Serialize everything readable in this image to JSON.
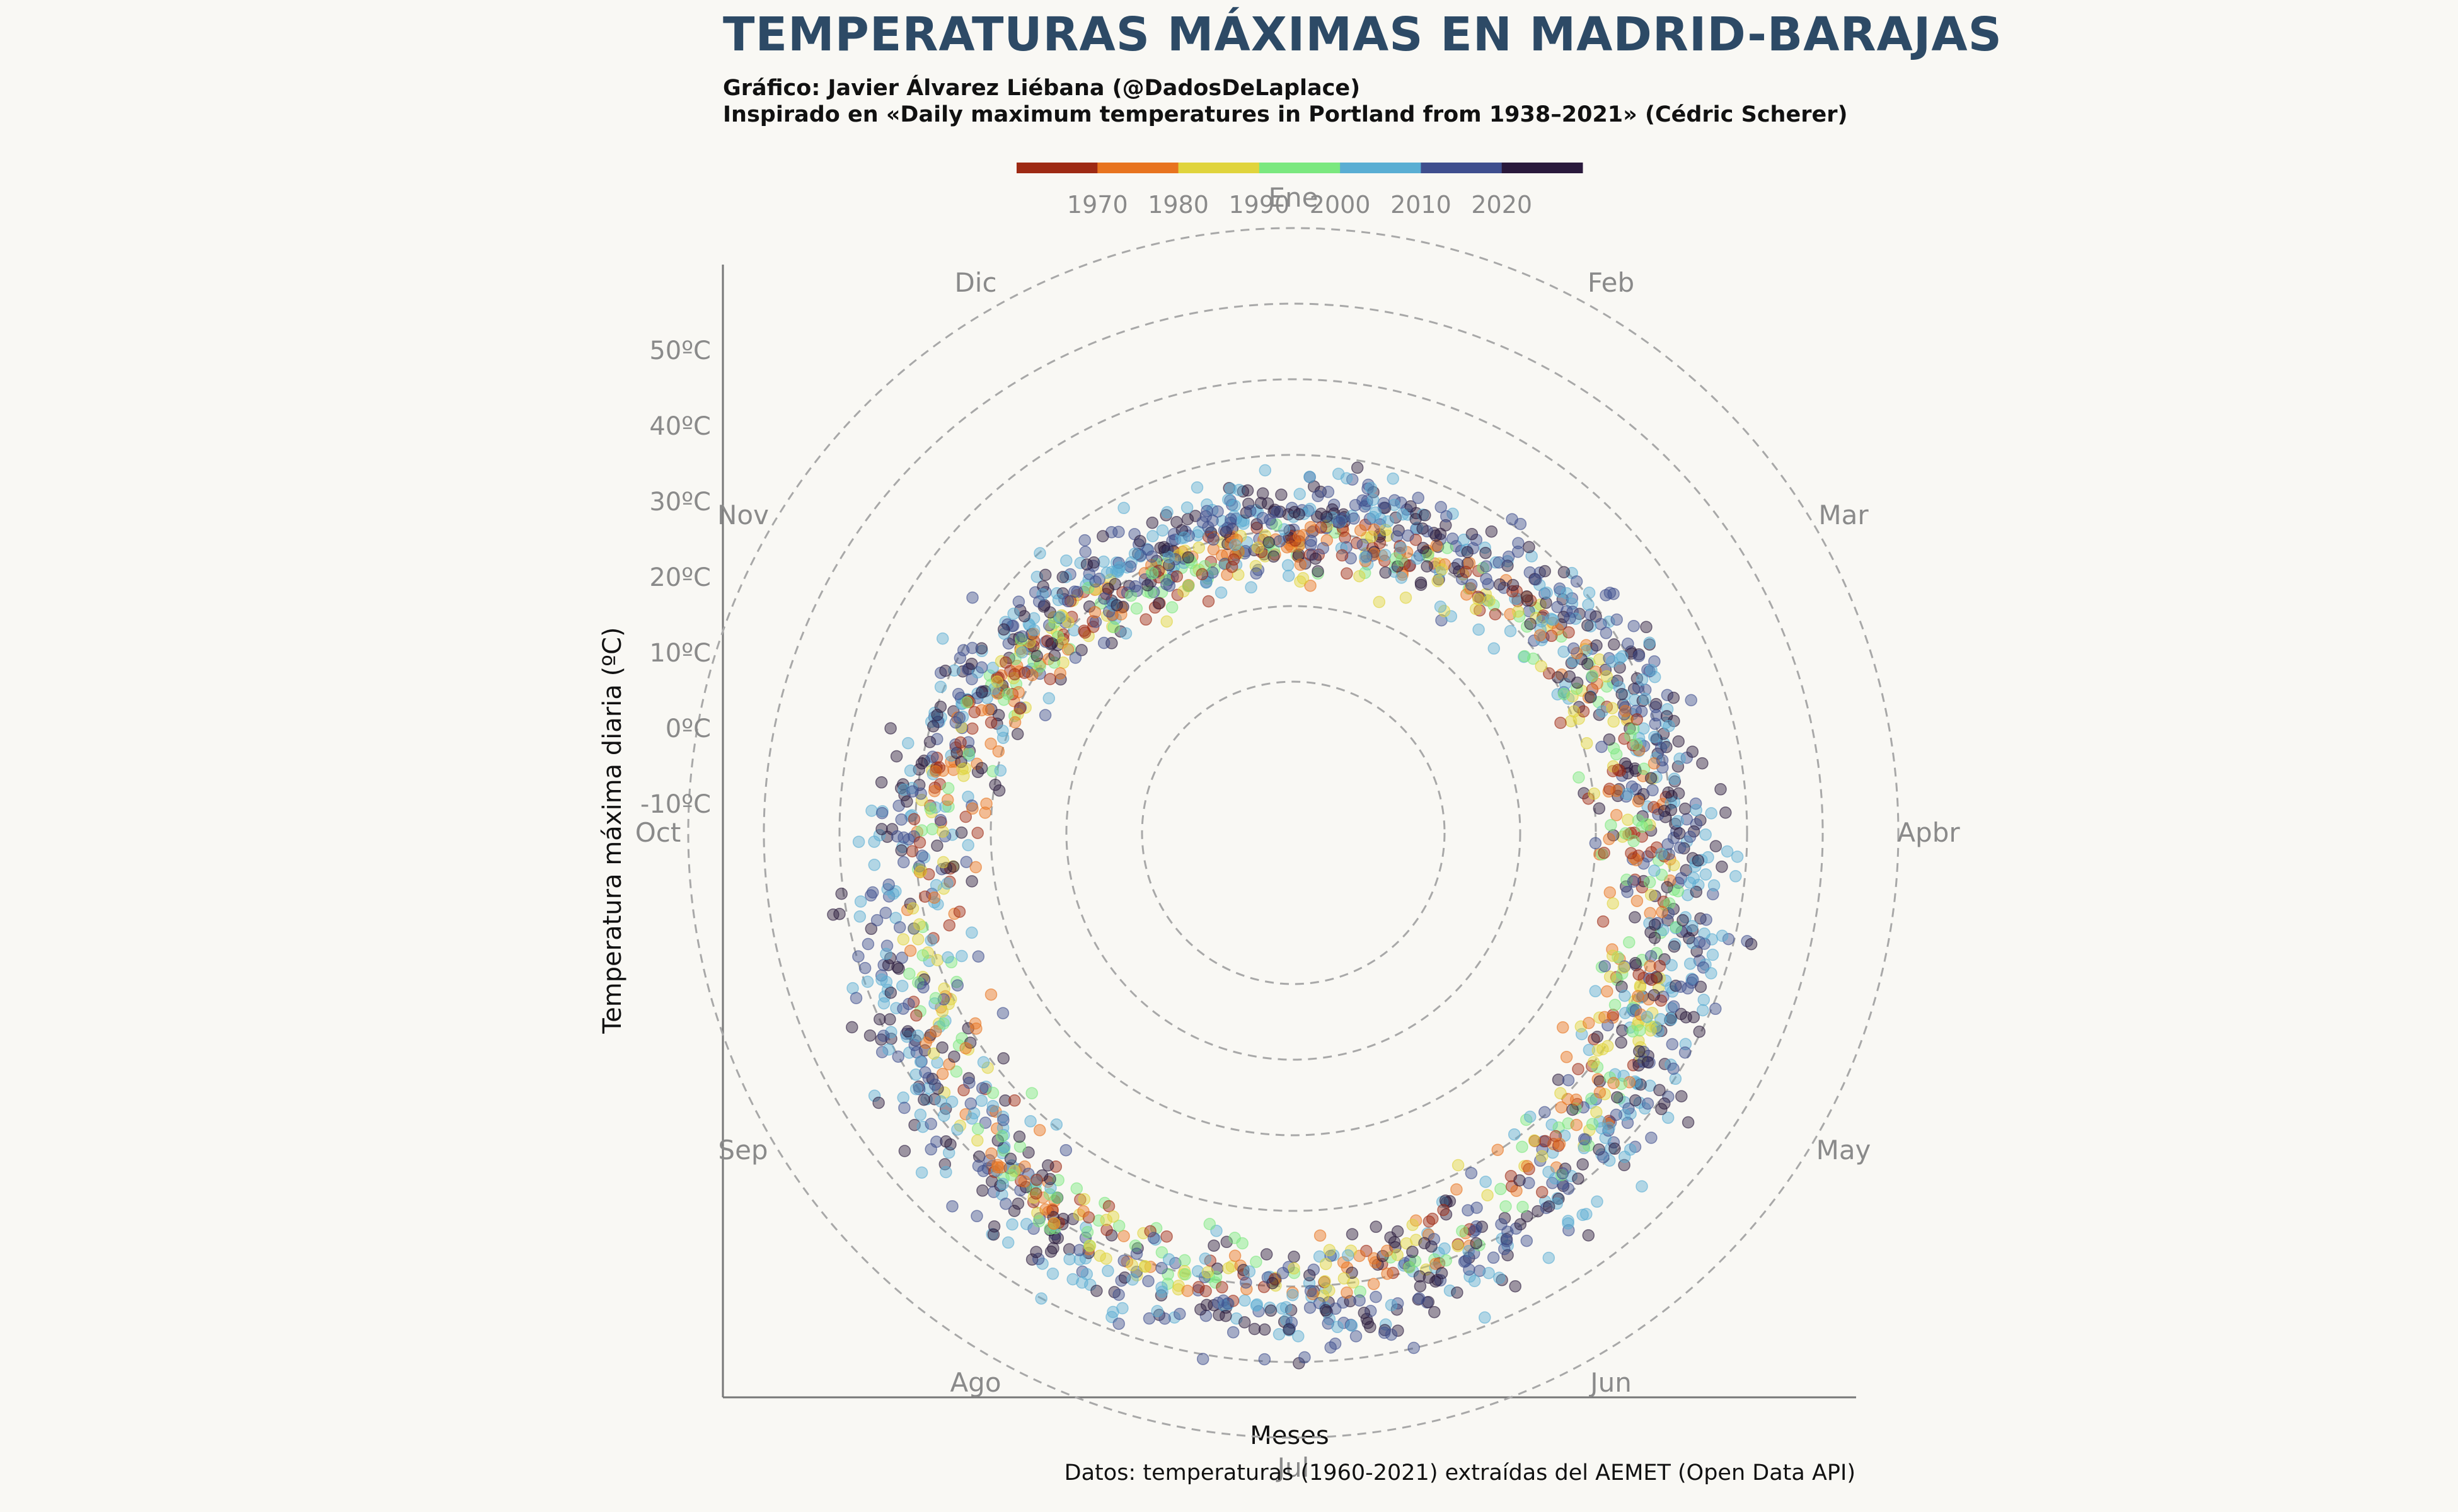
{
  "title": "TEMPERATURAS MÁXIMAS EN MADRID-BARAJAS",
  "subtitle_line1": "Gráfico: Javier Álvarez Liébana (@DadosDeLaplace)",
  "subtitle_line2": "Inspirado en «Daily maximum temperatures in Portland from 1938–2021» (Cédric Scherer)",
  "caption": "Datos: temperaturas (1960-2021) extraídas del AEMET (Open Data API)",
  "chart_data": {
    "type": "scatter",
    "coordinate_system": "polar",
    "xlabel": "Meses",
    "ylabel": "Temperatura máxima diaria (ºC)",
    "months": [
      "Ene",
      "Feb",
      "Mar",
      "Apbr",
      "May",
      "Jun",
      "Jul",
      "Ago",
      "Sep",
      "Oct",
      "Nov",
      "Dic"
    ],
    "y_ticks": [
      -10,
      0,
      10,
      20,
      30,
      40,
      50
    ],
    "y_tick_labels": [
      "-10ºC",
      "0ºC",
      "10ºC",
      "20ºC",
      "30ºC",
      "40ºC",
      "50ºC"
    ],
    "ylim": [
      -20,
      55
    ],
    "grid": true,
    "color_legend": {
      "position": "top",
      "labels": [
        "1970",
        "1980",
        "1990",
        "2000",
        "2010",
        "2020"
      ],
      "colors": [
        "#9e2a14",
        "#e8741f",
        "#e0d43c",
        "#7be87f",
        "#5aaed3",
        "#3f4f8e",
        "#2a1a3c"
      ]
    },
    "monthly_tmax_range": [
      {
        "month": "Ene",
        "min": 0,
        "max": 20
      },
      {
        "month": "Feb",
        "min": 1,
        "max": 23
      },
      {
        "month": "Mar",
        "min": 4,
        "max": 27
      },
      {
        "month": "Apbr",
        "min": 7,
        "max": 31
      },
      {
        "month": "May",
        "min": 11,
        "max": 36
      },
      {
        "month": "Jun",
        "min": 15,
        "max": 41
      },
      {
        "month": "Jul",
        "min": 21,
        "max": 42
      },
      {
        "month": "Ago",
        "min": 20,
        "max": 42
      },
      {
        "month": "Sep",
        "min": 13,
        "max": 38
      },
      {
        "month": "Oct",
        "min": 8,
        "max": 31
      },
      {
        "month": "Nov",
        "min": 4,
        "max": 24
      },
      {
        "month": "Dic",
        "min": 0,
        "max": 20
      }
    ],
    "year_range": [
      1960,
      2021
    ]
  }
}
